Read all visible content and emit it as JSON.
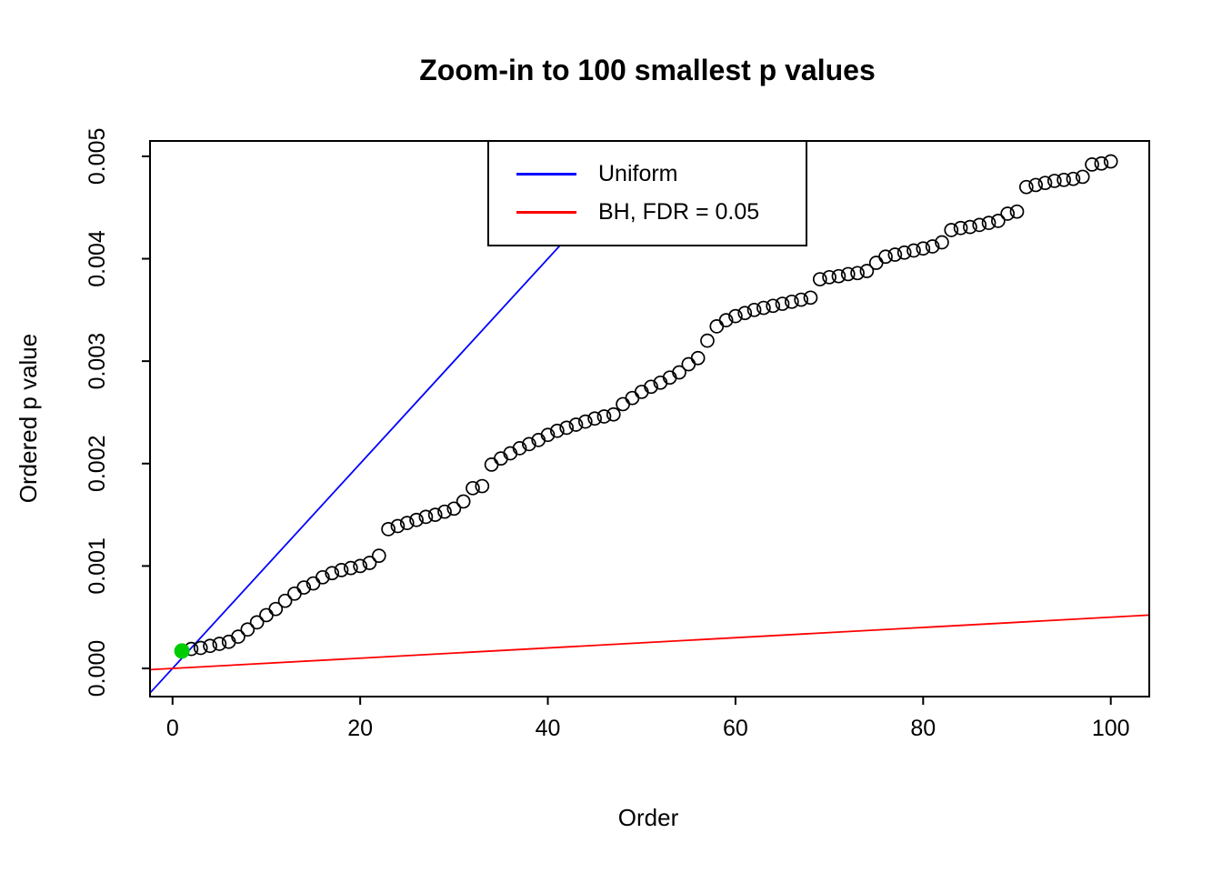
{
  "chart_data": {
    "type": "scatter",
    "title": "Zoom-in to 100 smallest p values",
    "xlabel": "Order",
    "ylabel": "Ordered p value",
    "xlim": [
      -2.4,
      104.1
    ],
    "ylim": [
      -0.000275,
      0.00515
    ],
    "x_ticks": [
      0,
      20,
      40,
      60,
      80,
      100
    ],
    "y_ticks": [
      "0.000",
      "0.001",
      "0.002",
      "0.003",
      "0.004",
      "0.005"
    ],
    "grid": false,
    "legend_position": "top-center",
    "point_style": "open-circle",
    "values": [
      0.00017,
      0.00019,
      0.0002,
      0.00022,
      0.00024,
      0.00026,
      0.00031,
      0.00038,
      0.00045,
      0.00052,
      0.00058,
      0.00066,
      0.00073,
      0.00079,
      0.00083,
      0.00089,
      0.00093,
      0.00096,
      0.00098,
      0.001,
      0.00103,
      0.0011,
      0.00136,
      0.00139,
      0.00142,
      0.00145,
      0.00148,
      0.0015,
      0.00153,
      0.00156,
      0.00163,
      0.00176,
      0.00178,
      0.00199,
      0.00205,
      0.0021,
      0.00215,
      0.00219,
      0.00223,
      0.00228,
      0.00232,
      0.00235,
      0.00238,
      0.00241,
      0.00244,
      0.00246,
      0.00248,
      0.00258,
      0.00264,
      0.0027,
      0.00275,
      0.00279,
      0.00284,
      0.00289,
      0.00297,
      0.00303,
      0.0032,
      0.00334,
      0.0034,
      0.00344,
      0.00347,
      0.0035,
      0.00352,
      0.00354,
      0.00356,
      0.00358,
      0.0036,
      0.00362,
      0.0038,
      0.00382,
      0.00383,
      0.00385,
      0.00386,
      0.00388,
      0.00396,
      0.00402,
      0.00404,
      0.00406,
      0.00408,
      0.0041,
      0.00412,
      0.00416,
      0.00428,
      0.0043,
      0.00431,
      0.00433,
      0.00435,
      0.00437,
      0.00444,
      0.00446,
      0.0047,
      0.00472,
      0.00474,
      0.00476,
      0.00477,
      0.00478,
      0.0048,
      0.00492,
      0.00493,
      0.00495
    ],
    "highlight_point": {
      "x": 1,
      "y": 0.00017,
      "color": "#00CC00"
    },
    "lines": [
      {
        "name": "Uniform",
        "color": "#0000FF",
        "slope": 0.0001,
        "intercept": 0
      },
      {
        "name": "BH, FDR = 0.05",
        "color": "#FF0000",
        "slope": 5e-06,
        "intercept": 0
      }
    ]
  }
}
